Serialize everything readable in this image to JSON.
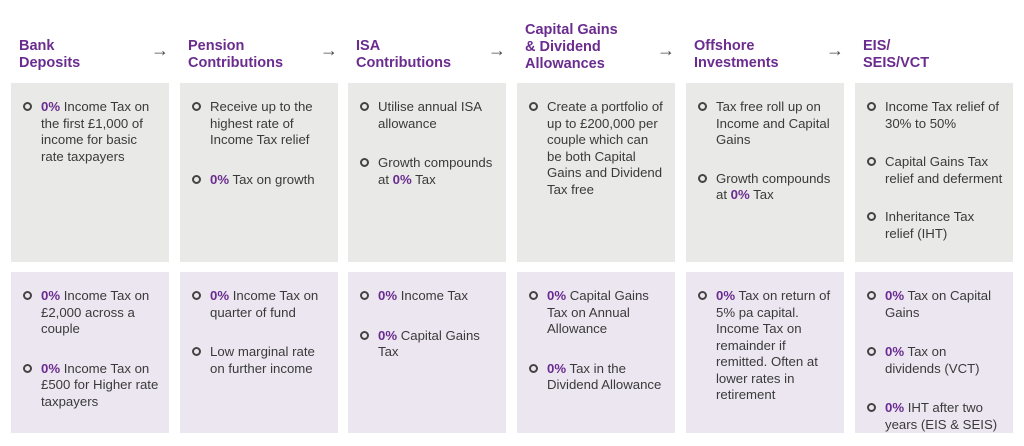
{
  "columns": [
    {
      "header": [
        "Bank",
        "Deposits"
      ],
      "arrow": "→",
      "top": [
        {
          "hl": "0%",
          "text": " Income Tax on the first £1,000 of income for basic rate taxpayers"
        }
      ],
      "bottom": [
        {
          "hl": "0%",
          "text": " Income Tax on £2,000 across a couple"
        },
        {
          "hl": "0%",
          "text": " Income Tax on £500 for Higher rate taxpayers"
        }
      ]
    },
    {
      "header": [
        "Pension",
        "Contributions"
      ],
      "arrow": "→",
      "top": [
        {
          "hl": "",
          "text": "Receive up to the highest rate of Income Tax relief"
        },
        {
          "hl": "0%",
          "text": " Tax on growth"
        }
      ],
      "bottom": [
        {
          "hl": "0%",
          "text": " Income Tax on quarter of fund"
        },
        {
          "hl": "",
          "text": "Low marginal rate on further income"
        }
      ]
    },
    {
      "header": [
        "ISA",
        "Contributions"
      ],
      "arrow": "→",
      "top": [
        {
          "hl": "",
          "text": "Utilise annual ISA allowance"
        },
        {
          "hl": "",
          "text": "Growth compounds at ",
          "hl2": "0%",
          "text2": " Tax"
        }
      ],
      "bottom": [
        {
          "hl": "0%",
          "text": " Income Tax"
        },
        {
          "hl": "0%",
          "text": " Capital Gains Tax"
        }
      ]
    },
    {
      "header": [
        "Capital Gains",
        "& Dividend",
        "Allowances"
      ],
      "arrow": "→",
      "top": [
        {
          "hl": "",
          "text": "Create a portfolio of up to £200,000 per couple which can be both Capital Gains and Dividend Tax free"
        }
      ],
      "bottom": [
        {
          "hl": "0%",
          "text": " Capital Gains Tax on Annual Allowance"
        },
        {
          "hl": "0%",
          "text": " Tax in the Dividend Allowance"
        }
      ]
    },
    {
      "header": [
        "Offshore",
        "Investments"
      ],
      "arrow": "→",
      "top": [
        {
          "hl": "",
          "text": "Tax free roll up on Income and Capital Gains"
        },
        {
          "hl": "",
          "text": "Growth compounds at ",
          "hl2": "0%",
          "text2": " Tax"
        }
      ],
      "bottom": [
        {
          "hl": "0%",
          "text": " Tax on return of 5% pa capital. Income Tax on remainder if remitted. Often at lower rates in retirement"
        }
      ]
    },
    {
      "header": [
        "EIS/",
        "SEIS/VCT"
      ],
      "arrow": "",
      "top": [
        {
          "hl": "",
          "text": "Income Tax relief of 30% to 50%"
        },
        {
          "hl": "",
          "text": "Capital Gains Tax relief and deferment"
        },
        {
          "hl": "",
          "text": "Inheritance Tax relief (IHT)"
        }
      ],
      "bottom": [
        {
          "hl": "0%",
          "text": " Tax on Capital Gains"
        },
        {
          "hl": "0%",
          "text": " Tax on dividends (VCT)"
        },
        {
          "hl": "0%",
          "text": " IHT after two years (EIS & SEIS)"
        }
      ]
    }
  ]
}
